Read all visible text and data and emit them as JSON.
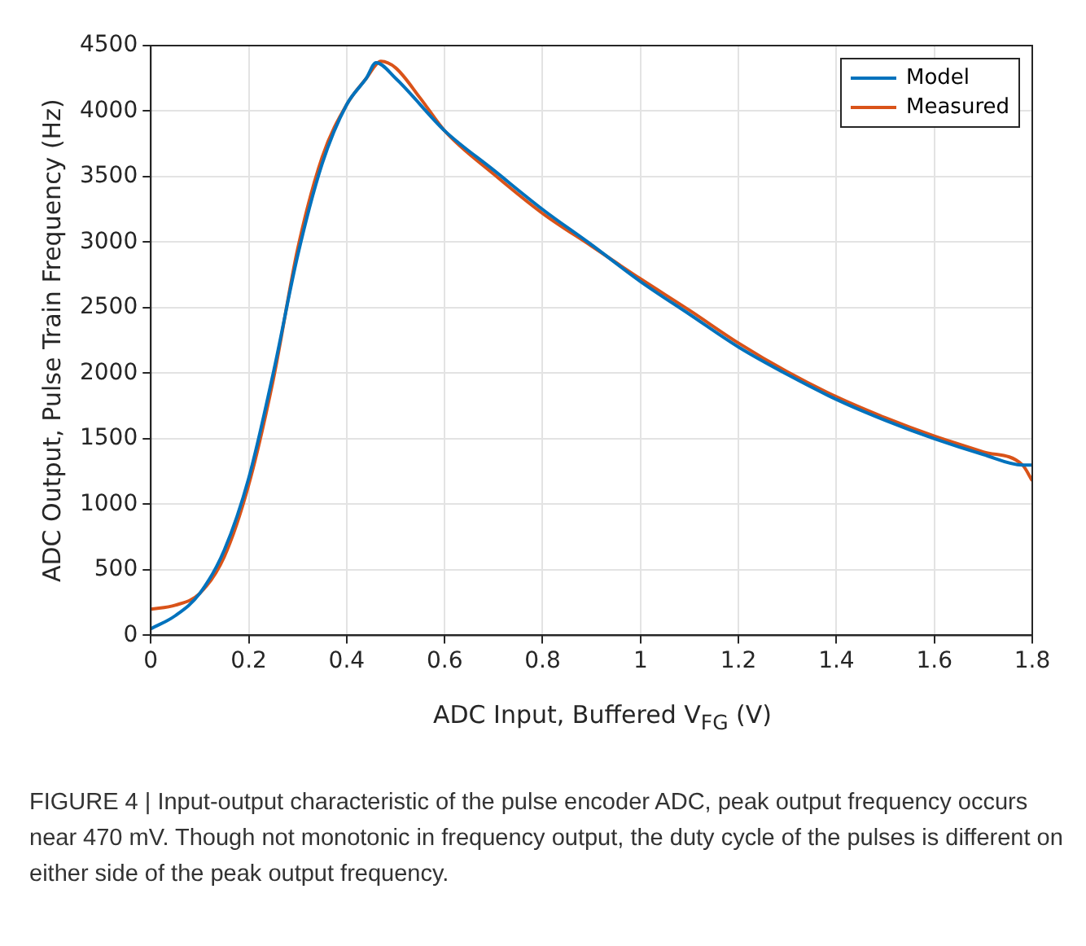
{
  "chart_data": {
    "type": "line",
    "xlabel": "ADC Input, Buffered V$_{FG}$ (V)",
    "ylabel": "ADC Output, Pulse Train Frequency (Hz)",
    "xlim": [
      0,
      1.8
    ],
    "xticks": [
      0,
      0.2,
      0.4,
      0.6,
      0.8,
      1,
      1.2,
      1.4,
      1.6,
      1.8
    ],
    "ylim": [
      0,
      4500
    ],
    "yticks": [
      0,
      500,
      1000,
      1500,
      2000,
      2500,
      3000,
      3500,
      4000,
      4500
    ],
    "grid": true,
    "legend": "top right",
    "marker": "none",
    "line_style": "solid",
    "series": [
      {
        "name": "Model",
        "color": "#0072bd",
        "x": [
          0,
          0.05,
          0.1,
          0.15,
          0.2,
          0.25,
          0.3,
          0.35,
          0.4,
          0.44,
          0.46,
          0.5,
          0.6,
          0.7,
          0.8,
          0.9,
          1,
          1.1,
          1.2,
          1.3,
          1.4,
          1.5,
          1.6,
          1.7,
          1.78,
          1.8
        ],
        "values": [
          50,
          150,
          320,
          650,
          1200,
          2000,
          2900,
          3600,
          4050,
          4250,
          4370,
          4250,
          3850,
          3550,
          3250,
          2980,
          2700,
          2450,
          2200,
          1990,
          1800,
          1640,
          1500,
          1380,
          1300,
          1300
        ]
      },
      {
        "name": "Measured",
        "color": "#d95319",
        "x": [
          0,
          0.05,
          0.1,
          0.15,
          0.2,
          0.25,
          0.3,
          0.35,
          0.4,
          0.44,
          0.47,
          0.5,
          0.55,
          0.6,
          0.7,
          0.8,
          0.9,
          1,
          1.1,
          1.2,
          1.3,
          1.4,
          1.5,
          1.6,
          1.7,
          1.78,
          1.8
        ],
        "values": [
          200,
          230,
          320,
          600,
          1150,
          1950,
          2950,
          3650,
          4050,
          4250,
          4380,
          4330,
          4100,
          3850,
          3520,
          3220,
          2970,
          2720,
          2480,
          2230,
          2010,
          1820,
          1660,
          1520,
          1400,
          1300,
          1180
        ]
      }
    ],
    "annotations": [
      "FIGURE 4 | Input-output characteristic of the pulse encoder ADC, peak output frequency occurs near 470 mV. Though not monotonic in frequency output, the duty cycle of the pulses is different on either side of the peak output frequency."
    ]
  }
}
